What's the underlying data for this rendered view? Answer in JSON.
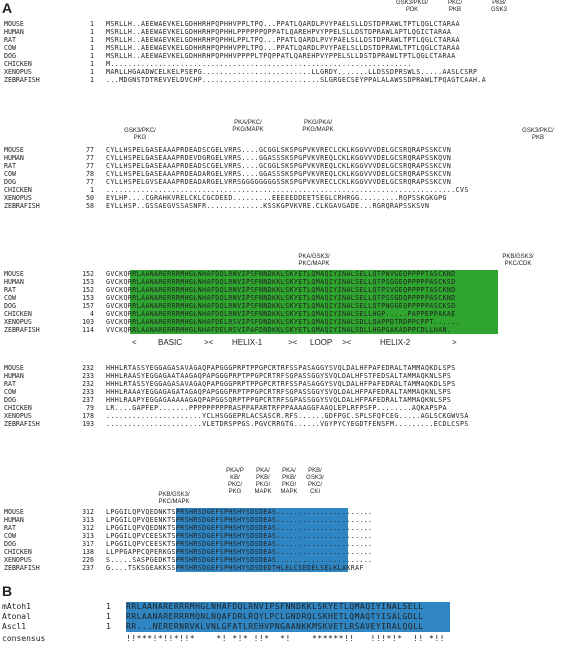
{
  "panels": {
    "a": "A",
    "b": "B"
  },
  "colors": {
    "conserved_green": "#2fa52f",
    "conserved_blue": "#2f86c2",
    "phospho_site": "#d22b7a"
  },
  "panel_a": {
    "blocks": [
      {
        "annotations": [
          "GSK3/PKG/\nPDK",
          "PKC/\nPKB",
          "PKB/\nGSK3"
        ],
        "rows": [
          {
            "species": "MOUSE",
            "start": "1",
            "seq": "MSRLLH..AEEWAEVKELGDHHRHPQPHHVPPLTPQ...PPATLQARDLPVYPAELSLLDSTDPRAWLTPTLQGLCTARAA"
          },
          {
            "species": "HUMAN",
            "start": "1",
            "seq": "MSRLLH..AEEWAEVKELGDHHRHPQPHHLPPPPPPQPPATLQAREHPVYPPELSLLDSTDPRAWLAPTLQGICTARAA"
          },
          {
            "species": "RAT",
            "start": "1",
            "seq": "MSRLLH..AEEWAEVKELGDHHRHPQPHHLPPLTPQ...PPATLQARDLPVYPAELSLLDSTDPRAWLTPTLQGLCTARAA"
          },
          {
            "species": "COW",
            "start": "1",
            "seq": "MSRLLH..AEEWAEVKELGDHHRHPQPHHVPPLTPQ...PPATLQARDLPVYPAELSLLDSTDPRAWLTPTLQGLCTARAA"
          },
          {
            "species": "DOG",
            "start": "1",
            "seq": "MSRLLH..AEEWAEVKELGDHHRHPQPHHVPPPPLTPQPPATLQAREHPVYPPELSLLDSTDPRAWLTPTLQGLCTARAA"
          },
          {
            "species": "CHICKEN",
            "start": "1",
            "seq": "M....................................................................."
          },
          {
            "species": "XENOPUS",
            "start": "1",
            "seq": "MARLLHGAADWCELKELPSEPG.........................LLGRDY.......LLDSSDPRSWLS.....AASLCSRP"
          },
          {
            "species": "ZEBRAFISH",
            "start": "1",
            "seq": "...MDGNSTDTREVVELDVCHP...........................SLGRGECSEYPPALALAWSSDPRAWLTPQAGTCAAH.A"
          }
        ]
      },
      {
        "annotations": [
          "GSK3/PKC/\nPKG",
          "PKA/PKC/\nPKG/MAPK",
          "PKG/PKA/\nPKG/MAPK",
          "GSK3/PKC/\nPKB"
        ],
        "rows": [
          {
            "species": "MOUSE",
            "start": "77",
            "seq": "CYLLHSPELGASEAAAPRDEADSCGELVRRS....GCGGLSKSPGPVKVRECLCKLKGGVVVDELGCSRQRAPSSKCVN"
          },
          {
            "species": "HUMAN",
            "start": "77",
            "seq": "CYLLHSPELGASEAAAPRDEVDGRGELVRRS....GGASSSKSPGPVKVREQLCKLKGGVVVDELGCSRQRAPSSKQVN"
          },
          {
            "species": "RAT",
            "start": "77",
            "seq": "CYLLHSPELGASEAAAPRDEADSCGELVRRS....GCGGLSKSPGPVKVREQLCKLKGGVVVDELGCSRQRAPSSKCVN"
          },
          {
            "species": "COW",
            "start": "78",
            "seq": "CYLLHSPELGASEAAAPRDEADARGELVRRS....GGASSSKSPGPVKVREQLCKLKGGVVVDELGCSRQRAPSSKCVN"
          },
          {
            "species": "DOG",
            "start": "77",
            "seq": "CYLLHSPELGVSEAAAPRDEADARGELVRRSGGGGGGGGSSKSPGPVKVRECLCKLKGGVVVDELGCSRQRAPSSKCVN"
          },
          {
            "species": "CHICKEN",
            "start": "1",
            "seq": "................................................................................CVS"
          },
          {
            "species": "XENOPUS",
            "start": "50",
            "seq": "EYLHP....CGRAHKVRELCKLCGCDEED.........EEEEEDDEETSEGLCRHRGG.........RQPSSKGKGPG"
          },
          {
            "species": "ZEBRAFISH",
            "start": "58",
            "seq": "EYLLHSP..GSSAEGVSSASNFR.............KSSKGPVKVRE.CLKGAVGADE...RGRQRAPSSKSVN"
          }
        ]
      },
      {
        "annotations": [
          "PKA/GSK3/\nPKC/MAPK",
          "PKB/GSK3/\nPKC/CDK"
        ],
        "rows": [
          {
            "species": "MOUSE",
            "start": "152",
            "seq": "GVCKQRRLAANARERRRMHGLNHAFDQLRNVIPSFNNDKKLSKYETLQMAQIYINALSELLQTPNVGEQPPPPTASCKND"
          },
          {
            "species": "HUMAN",
            "start": "153",
            "seq": "GVCKQRRLAANARERRRMHGLNHAFDQLRNVIPSFNNDKKLSKYETLQMAQIYINALSELLQTPSGGEQPPPPPASCKSD"
          },
          {
            "species": "RAT",
            "start": "152",
            "seq": "GVCKQRRLAANARERRRMHGLNHAFDQLRNVIPSFNNDKKLSKYETLQMAQIYINALSELLQTPSVGEQPPPPTASCKND"
          },
          {
            "species": "COW",
            "start": "153",
            "seq": "GVCKQRRLAANARERRRMHGLNHAFDQLRNVIPSFNNDKKLSKYETLQMAQIYINALSELLQTPSSGDQPPPPPASCKND"
          },
          {
            "species": "DOG",
            "start": "157",
            "seq": "GVCKQRRLAANARERRRMHGLNHAFDQLRNVIPSFNNDKKLSKYETLQMAQIYINALSELLQTPNGGEQPPPPPASCKSD"
          },
          {
            "species": "CHICKEN",
            "start": "4",
            "seq": "GVCKQRRLAANARERRRMHGLNHAFDQLRNVIPSFNNDKKLSKYETLQMAQIYINALSELLHGP.....PAPPEPPAKAE"
          },
          {
            "species": "XENOPUS",
            "start": "103",
            "seq": "GVCKQRRLAANARERRRMHGLNHAFDELRSVIPSFDNDKKLSKYETLQMAQIYINALSDLLQAPPDTRDPPCPPT......"
          },
          {
            "species": "ZEBRAFISH",
            "start": "114",
            "seq": "VVCKQRRLAANARERRRMHGLNHAFDELRSVIPAFDNDKKLSKYETLQMAQIYINALSDLLHGPGAKADPPCDLLHAN."
          }
        ],
        "domains": [
          "<",
          "BASIC",
          "><",
          "HELIX-1",
          "><",
          "LOOP",
          "><",
          "HELIX-2",
          ">"
        ]
      },
      {
        "annotations": [],
        "rows": [
          {
            "species": "MOUSE",
            "start": "232",
            "seq": "HHHLRTASSYEGGAGASAVAGAQPAPGGGPRPTPPGPCRTRFSSPASAGGYSVQLDALHFPAFEDRALTAMMAQKDLSPS"
          },
          {
            "species": "HUMAN",
            "start": "233",
            "seq": "HHHLRAASYEGGAGAATAAGAQPAPGGGPRPTPPGPCRTRFSGPASSGGYSVQLDALHFSTFEDSALTAMMAQKNLSPS"
          },
          {
            "species": "RAT",
            "start": "232",
            "seq": "HHHLRTASSYEGGAGASAVAGAQPAPGGGPRPTPPGPCRTRFSSPASAGGYSVQLDALHFPAFEDRALTAMMAQKDLSPS"
          },
          {
            "species": "COW",
            "start": "233",
            "seq": "HHHLRAAAYEGGAGAGATAGAQPAPGGGPRPTPPGPCRTRFSGPASSGGYSVQLDALHFPAFEDRALTAMMAQKNLSPS"
          },
          {
            "species": "DOG",
            "start": "237",
            "seq": "HHHLRAAPYEGGAGAAAAAGAQPAPGGSQRPTPPGPCRTRFSGPASSGGYSVQLDALHFPAFEDRALTAMMAQKNLSPS"
          },
          {
            "species": "CHICKEN",
            "start": "79",
            "seq": "LR....GAPFEP.......PPPPPPPPPRASPPAPARTRFPPAAAAGGFAAQLEPLRFPSFP........AQKAPSPA"
          },
          {
            "species": "XENOPUS",
            "start": "178",
            "seq": "......................YCLHSGGEPRLACSASCR.RFS......GDFPGC.SPLSFQFCEG.....AGLSCKGWVSA"
          },
          {
            "species": "ZEBRAFISH",
            "start": "193",
            "seq": "......................VLETDRSPPGS.PGVCRRGTG......VGYPYCYEGDTFENSFM.........ECDLCSPS"
          }
        ]
      },
      {
        "annotations": [
          "PKB/GSK3/\nPKC/MAPK",
          "PKA/P\nKB/\nPKC/\nPKG",
          "PKA/\nPKB/\nPKG/\nMAPK",
          "PKA/\nPKB/\nPKG/\nMAPK",
          "PKB/\nGSK3/\nPKC/\nCKI"
        ],
        "rows": [
          {
            "species": "MOUSE",
            "start": "312",
            "seq": "LPGGILQPVQEDNKTSPRSHRSDGEFSPHSHYSDSDEAS......................"
          },
          {
            "species": "HUMAN",
            "start": "313",
            "seq": "LPGGILQPVQEENKTSPRSHRSDGEFSPHSHYSDSDEAS......................"
          },
          {
            "species": "RAT",
            "start": "312",
            "seq": "LPGGILQPVQEDNKTSPRSHRSDGEFSPHSHYSDSDEAS......................"
          },
          {
            "species": "COW",
            "start": "313",
            "seq": "LPGGILQPVCEESKTSPRSHRSDGEFSPHSHYSDSDEAS......................"
          },
          {
            "species": "DOG",
            "start": "317",
            "seq": "LPGGILQPVCEESKTSPRSHRSDGEFSPHSHYSDSDEAS......................"
          },
          {
            "species": "CHICKEN",
            "start": "138",
            "seq": "LLPPGAPPCQPERKGSPRSHRSDGEFSPHSHYSDSDEAS......................"
          },
          {
            "species": "XENOPUS",
            "start": "226",
            "seq": "S.....SASPGEDKTSPRSHRSDGEFSPHSHYSDSDEAS......................"
          },
          {
            "species": "ZEBRAFISH",
            "start": "237",
            "seq": "G....TSKSGEAKKSSPRSHRSDGEFSPHSHYSDSDEDTHLELCSEDELSELKLAKRAF"
          }
        ]
      }
    ]
  },
  "panel_b": {
    "rows": [
      {
        "name": "mAtoh1",
        "start": "1",
        "seq": "RRLAANARERRRMHGLNHAFDQLRNVIPSFNNDKKLSKYETLQMAQIYINALSELL"
      },
      {
        "name": "Atonal",
        "start": "1",
        "seq": "RRLAANARERRRMQNLNQAFDRLRQYLPCLGNDRQLSKHETLQMAQTYISALGDLL"
      },
      {
        "name": "Ascl1",
        "start": "1",
        "seq": "RR...NERERNRVKLVNLGFATLREHVPNGAANKKMSKVETLRSAVEYIRALQQLL"
      },
      {
        "name": "consensus",
        "start": "",
        "seq": "!!***!*!!*!!*    *! *!* !!*  *!    ******!!   !!!*!*  !! *!!"
      }
    ]
  }
}
